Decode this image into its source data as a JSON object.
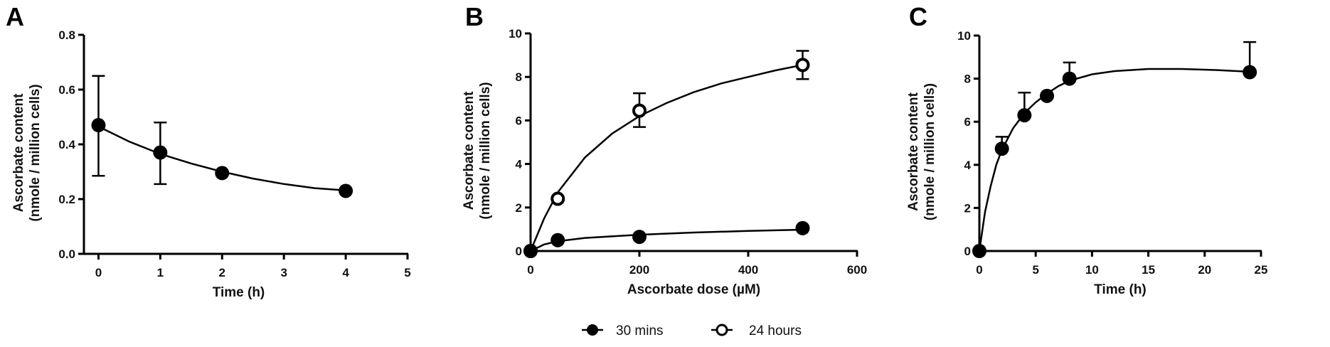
{
  "figure": {
    "legend": {
      "items": [
        {
          "label": "30 mins",
          "marker": "filled-circle"
        },
        {
          "label": "24 hours",
          "marker": "open-circle"
        }
      ]
    }
  },
  "chart_data": [
    {
      "panel": "A",
      "type": "scatter",
      "title": "",
      "xlabel": "Time (h)",
      "ylabel": "Ascorbate content",
      "ylabel2": "(nmole / million cells)",
      "xlim": [
        -0.5,
        5
      ],
      "ylim": [
        0,
        0.8
      ],
      "xticks": [
        0,
        1,
        2,
        3,
        4,
        5
      ],
      "yticks": [
        "0.0",
        "0.2",
        "0.4",
        "0.6",
        "0.8"
      ],
      "grid": false,
      "series": [
        {
          "name": "Ascorbate",
          "marker": "filled-circle",
          "fit_curve": "exponential decay",
          "x": [
            0,
            1,
            2,
            4
          ],
          "y": [
            0.47,
            0.37,
            0.295,
            0.23
          ],
          "err_low": [
            0.285,
            0.255,
            null,
            null
          ],
          "err_high": [
            0.65,
            0.48,
            null,
            null
          ],
          "curve": [
            [
              0,
              0.465
            ],
            [
              0.5,
              0.41
            ],
            [
              1,
              0.365
            ],
            [
              1.5,
              0.33
            ],
            [
              2,
              0.3
            ],
            [
              2.5,
              0.275
            ],
            [
              3,
              0.255
            ],
            [
              3.5,
              0.24
            ],
            [
              4,
              0.232
            ]
          ]
        }
      ]
    },
    {
      "panel": "B",
      "type": "scatter",
      "title": "",
      "xlabel": "Ascorbate dose (µM)",
      "ylabel": "Ascorbate content",
      "ylabel2": "(nmole / million cells)",
      "xlim": [
        0,
        600
      ],
      "ylim": [
        0,
        10
      ],
      "xticks": [
        0,
        200,
        400,
        600
      ],
      "yticks": [
        "0",
        "2",
        "4",
        "6",
        "8",
        "10"
      ],
      "grid": false,
      "legend_position": "bottom",
      "series": [
        {
          "name": "30 mins",
          "marker": "filled-circle",
          "fit_curve": "saturation",
          "x": [
            0,
            50,
            200,
            500
          ],
          "y": [
            0,
            0.5,
            0.65,
            1.05
          ],
          "err_low": [
            null,
            null,
            null,
            null
          ],
          "err_high": [
            null,
            null,
            null,
            null
          ],
          "curve": [
            [
              0,
              0
            ],
            [
              25,
              0.3
            ],
            [
              50,
              0.45
            ],
            [
              100,
              0.6
            ],
            [
              200,
              0.75
            ],
            [
              300,
              0.85
            ],
            [
              400,
              0.92
            ],
            [
              500,
              0.98
            ]
          ]
        },
        {
          "name": "24 hours",
          "marker": "open-circle",
          "fit_curve": "saturation",
          "x": [
            0,
            50,
            200,
            500
          ],
          "y": [
            0,
            2.4,
            6.45,
            8.55
          ],
          "err_low": [
            null,
            null,
            5.7,
            7.9
          ],
          "err_high": [
            null,
            null,
            7.25,
            9.2
          ],
          "curve": [
            [
              0,
              0
            ],
            [
              25,
              1.5
            ],
            [
              50,
              2.7
            ],
            [
              100,
              4.3
            ],
            [
              150,
              5.4
            ],
            [
              200,
              6.2
            ],
            [
              250,
              6.8
            ],
            [
              300,
              7.3
            ],
            [
              350,
              7.7
            ],
            [
              400,
              8.0
            ],
            [
              450,
              8.3
            ],
            [
              500,
              8.55
            ]
          ]
        }
      ]
    },
    {
      "panel": "C",
      "type": "scatter",
      "title": "",
      "xlabel": "Time (h)",
      "ylabel": "Ascorbate content",
      "ylabel2": "(nmole / million cells)",
      "xlim": [
        0,
        25
      ],
      "ylim": [
        0,
        10
      ],
      "xticks": [
        0,
        5,
        10,
        15,
        20,
        25
      ],
      "yticks": [
        "0",
        "2",
        "4",
        "6",
        "8",
        "10"
      ],
      "grid": false,
      "series": [
        {
          "name": "Ascorbate",
          "marker": "filled-circle",
          "fit_curve": "rise to plateau",
          "x": [
            0,
            2,
            4,
            6,
            8,
            24
          ],
          "y": [
            0,
            4.75,
            6.3,
            7.2,
            8.0,
            8.3
          ],
          "err_low": [
            null,
            null,
            null,
            null,
            null,
            null
          ],
          "err_high": [
            null,
            5.3,
            7.35,
            null,
            8.75,
            9.7
          ],
          "curve": [
            [
              0,
              0
            ],
            [
              0.5,
              1.8
            ],
            [
              1,
              3.0
            ],
            [
              1.5,
              4.0
            ],
            [
              2,
              4.7
            ],
            [
              3,
              5.7
            ],
            [
              4,
              6.4
            ],
            [
              5,
              6.9
            ],
            [
              6,
              7.3
            ],
            [
              7,
              7.65
            ],
            [
              8,
              7.9
            ],
            [
              10,
              8.2
            ],
            [
              12,
              8.35
            ],
            [
              15,
              8.45
            ],
            [
              18,
              8.45
            ],
            [
              21,
              8.4
            ],
            [
              24,
              8.32
            ]
          ]
        }
      ]
    }
  ],
  "panels": {
    "A": {
      "letter": "A"
    },
    "B": {
      "letter": "B"
    },
    "C": {
      "letter": "C"
    }
  }
}
